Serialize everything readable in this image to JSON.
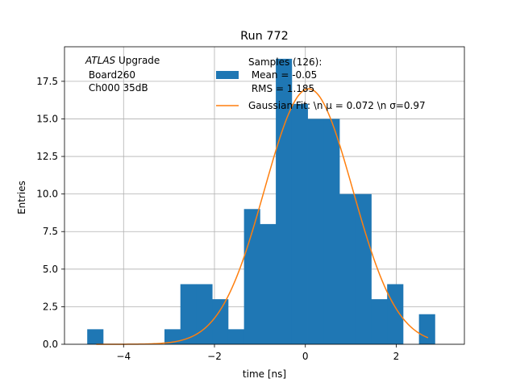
{
  "chart_data": {
    "type": "bar",
    "title": "Run 772",
    "xlabel": "time [ns]",
    "ylabel": "Entries",
    "xlim": [
      -5.3,
      3.5
    ],
    "ylim": [
      0,
      19.8
    ],
    "xticks": [
      -4,
      -2,
      0,
      2
    ],
    "xtick_labels": [
      "−4",
      "−2",
      "0",
      "2"
    ],
    "yticks": [
      0,
      2.5,
      5,
      7.5,
      10,
      12.5,
      15,
      17.5
    ],
    "ytick_labels": [
      "0.0",
      "2.5",
      "5.0",
      "7.5",
      "10.0",
      "12.5",
      "15.0",
      "17.5"
    ],
    "grid": true,
    "histogram": {
      "name_lines": [
        "Samples (126):",
        " Mean = -0.05",
        " RMS = 1.185"
      ],
      "color": "#1f77b4",
      "bins": [
        {
          "x0": -4.8,
          "x1": -4.45,
          "value": 1
        },
        {
          "x0": -3.1,
          "x1": -2.75,
          "value": 1
        },
        {
          "x0": -2.75,
          "x1": -2.4,
          "value": 4
        },
        {
          "x0": -2.4,
          "x1": -2.05,
          "value": 4
        },
        {
          "x0": -2.05,
          "x1": -1.7,
          "value": 3
        },
        {
          "x0": -1.7,
          "x1": -1.35,
          "value": 1
        },
        {
          "x0": -1.35,
          "x1": -1.0,
          "value": 9
        },
        {
          "x0": -1.0,
          "x1": -0.65,
          "value": 8
        },
        {
          "x0": -0.65,
          "x1": -0.3,
          "value": 19
        },
        {
          "x0": -0.3,
          "x1": 0.05,
          "value": 16
        },
        {
          "x0": 0.05,
          "x1": 0.4,
          "value": 15
        },
        {
          "x0": 0.4,
          "x1": 0.75,
          "value": 15
        },
        {
          "x0": 0.75,
          "x1": 1.1,
          "value": 10
        },
        {
          "x0": 1.1,
          "x1": 1.45,
          "value": 10
        },
        {
          "x0": 1.45,
          "x1": 1.8,
          "value": 3
        },
        {
          "x0": 1.8,
          "x1": 2.15,
          "value": 4
        },
        {
          "x0": 2.5,
          "x1": 2.85,
          "value": 2
        }
      ]
    },
    "fit": {
      "name": "Gaussian Fit: \\n μ = 0.072 \\n σ=0.97",
      "color": "#ff7f0e",
      "mu": 0.072,
      "sigma": 0.97,
      "amplitude": 17.0,
      "x_range": [
        -4.6,
        2.7
      ]
    },
    "legend_location": "top-right",
    "annotation": {
      "atlas": "ATLAS",
      "upgrade": " Upgrade",
      "board": " Board260",
      "channel": " Ch000 35dB"
    }
  }
}
